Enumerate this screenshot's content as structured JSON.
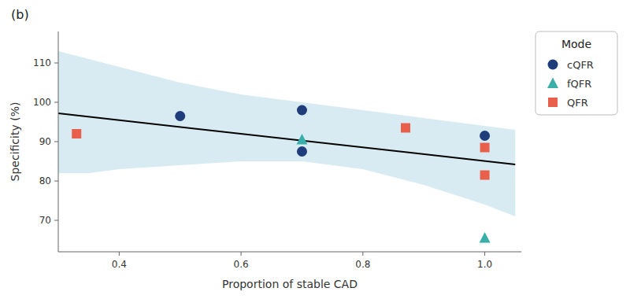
{
  "chart_data": {
    "type": "scatter",
    "title": "(b)",
    "x_label": "Proportion of stable CAD",
    "y_label": "Specificity (%)",
    "xlim": [
      0.3,
      1.06
    ],
    "ylim": [
      62,
      118
    ],
    "xticks": [
      0.4,
      0.6,
      0.8,
      {
        "value": 1.0,
        "label": "1.0"
      }
    ],
    "yticks": [
      70,
      80,
      90,
      100,
      110
    ],
    "grid": false,
    "legend": "right",
    "legend_title": "Mode",
    "series": [
      {
        "name": "cQFR",
        "type": "scatter",
        "marker": "circle",
        "color": "#1f3d7a",
        "x": [
          0.5,
          0.7,
          0.7,
          1.0
        ],
        "values": [
          96.5,
          98.0,
          87.5,
          91.5
        ]
      },
      {
        "name": "fQFR",
        "type": "scatter",
        "marker": "triangle",
        "color": "#3aafa9",
        "x": [
          0.7,
          1.0
        ],
        "values": [
          90.5,
          65.5
        ]
      },
      {
        "name": "QFR",
        "type": "scatter",
        "marker": "square",
        "color": "#e8604c",
        "x": [
          0.33,
          0.87,
          1.0,
          1.0
        ],
        "values": [
          92.0,
          93.5,
          88.5,
          81.5
        ]
      },
      {
        "type": "line",
        "color": "#000000",
        "x": [
          0.3,
          1.05
        ],
        "values": [
          97.2,
          84.2
        ]
      },
      {
        "type": "band",
        "color": "#b8d8e8",
        "x": [
          0.3,
          0.35,
          0.4,
          0.5,
          0.6,
          0.7,
          0.8,
          0.9,
          1.0,
          1.05
        ],
        "y_upper": [
          113,
          111,
          109,
          105,
          102,
          100,
          98,
          96,
          94,
          93
        ],
        "y_lower": [
          82,
          82,
          83,
          84,
          85,
          85,
          83,
          79,
          74,
          71
        ]
      }
    ]
  }
}
